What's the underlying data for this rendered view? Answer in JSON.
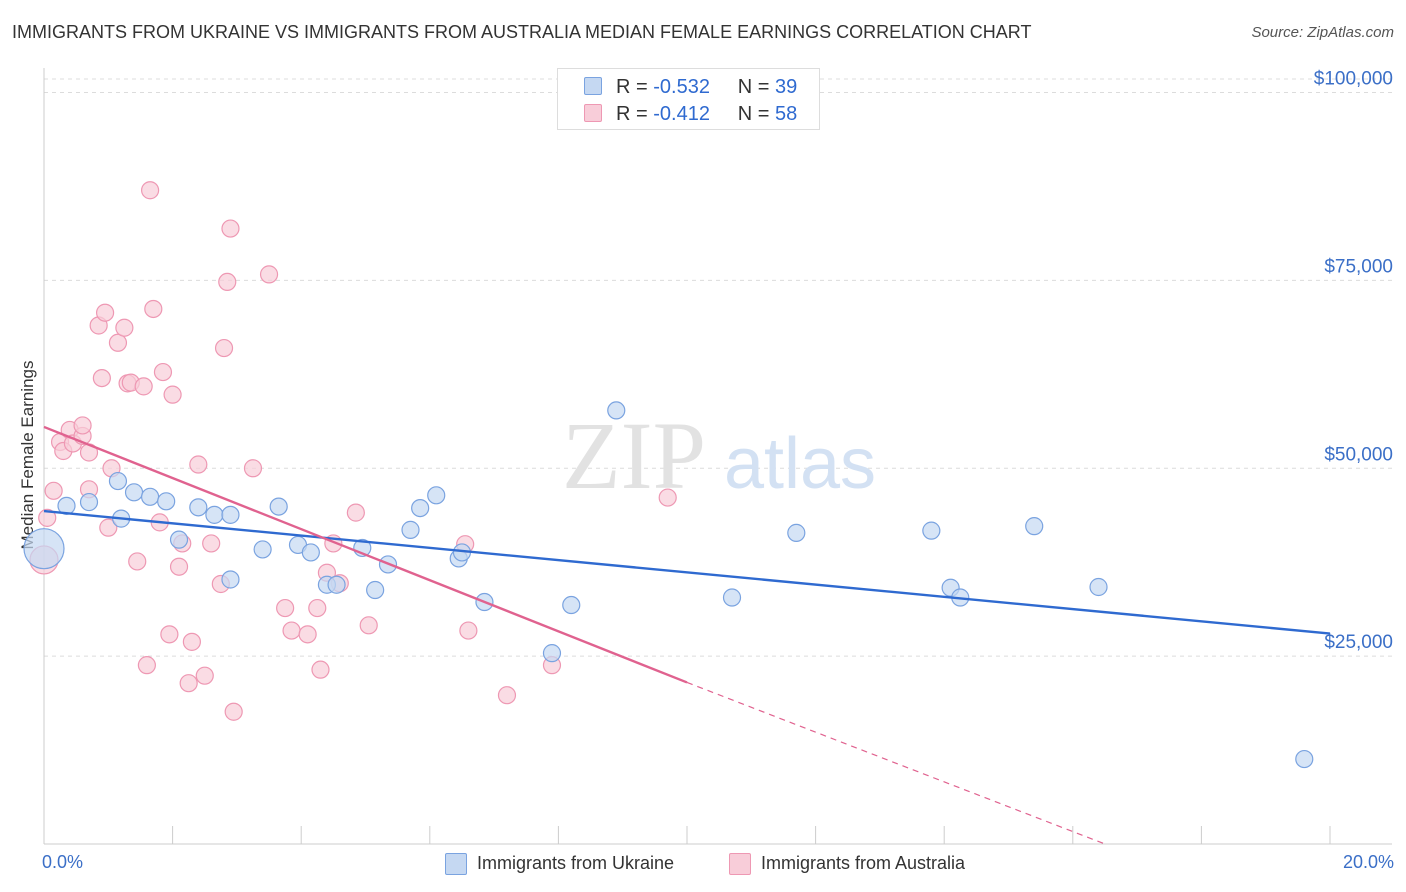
{
  "title": "IMMIGRANTS FROM UKRAINE VS IMMIGRANTS FROM AUSTRALIA MEDIAN FEMALE EARNINGS CORRELATION CHART",
  "source": "Source: ZipAtlas.com",
  "watermark": {
    "zip": "ZIP",
    "atlas": "atlas"
  },
  "stats": [
    {
      "r_label": "R =",
      "r_value": "-0.532",
      "n_label": "N =",
      "n_value": "39"
    },
    {
      "r_label": "R =",
      "r_value": "-0.412",
      "n_label": "N =",
      "n_value": "58"
    }
  ],
  "legend": [
    {
      "label": "Immigrants from Ukraine"
    },
    {
      "label": "Immigrants from Australia"
    }
  ],
  "colors": {
    "ukraine_fill": "#c5d8f2",
    "ukraine_stroke": "#7aa3e0",
    "ukraine_line": "#2f6ad0",
    "australia_fill": "#f8cdd9",
    "australia_stroke": "#ee98b3",
    "australia_line": "#e0628f",
    "tick_label": "#3b6fc7",
    "grid": "#dcdcdc"
  },
  "chart_data": {
    "type": "scatter",
    "xlabel": "",
    "ylabel": "Median Female Earnings",
    "xlim": [
      0,
      20
    ],
    "ylim": [
      0,
      103000
    ],
    "x_tick_labels": [
      {
        "value": 0,
        "label": "0.0%"
      },
      {
        "value": 20,
        "label": "20.0%"
      }
    ],
    "y_ticks": [
      {
        "value": 25000,
        "label": "$25,000"
      },
      {
        "value": 50000,
        "label": "$50,000"
      },
      {
        "value": 75000,
        "label": "$75,000"
      },
      {
        "value": 100000,
        "label": "$100,000"
      }
    ],
    "grid": true,
    "legend_position": "bottom",
    "series": [
      {
        "name": "Immigrants from Ukraine",
        "trend": {
          "x1": 0,
          "y1": 44300,
          "x2": 20,
          "y2": 28000,
          "dashed_to": null
        },
        "points": [
          [
            0.0,
            39300
          ],
          [
            0.35,
            45000
          ],
          [
            0.7,
            45500
          ],
          [
            1.15,
            48300
          ],
          [
            1.2,
            43300
          ],
          [
            1.4,
            46800
          ],
          [
            1.65,
            46200
          ],
          [
            1.9,
            45600
          ],
          [
            2.1,
            40500
          ],
          [
            2.4,
            44800
          ],
          [
            2.65,
            43800
          ],
          [
            2.9,
            43800
          ],
          [
            2.9,
            35200
          ],
          [
            3.4,
            39200
          ],
          [
            3.65,
            44900
          ],
          [
            3.95,
            39800
          ],
          [
            4.15,
            38800
          ],
          [
            4.4,
            34500
          ],
          [
            4.55,
            34500
          ],
          [
            4.95,
            39400
          ],
          [
            5.15,
            33800
          ],
          [
            5.35,
            37200
          ],
          [
            5.7,
            41800
          ],
          [
            5.85,
            44700
          ],
          [
            6.1,
            46400
          ],
          [
            6.45,
            38000
          ],
          [
            6.5,
            38800
          ],
          [
            6.85,
            32200
          ],
          [
            7.9,
            25400
          ],
          [
            8.2,
            31800
          ],
          [
            8.9,
            57700
          ],
          [
            10.7,
            32800
          ],
          [
            11.7,
            41400
          ],
          [
            13.8,
            41700
          ],
          [
            14.1,
            34100
          ],
          [
            14.25,
            32800
          ],
          [
            15.4,
            42300
          ],
          [
            16.4,
            34200
          ],
          [
            19.6,
            11300
          ]
        ]
      },
      {
        "name": "Immigrants from Australia",
        "trend": {
          "x1": 0,
          "y1": 55500,
          "x2": 10.0,
          "y2": 21500,
          "dashed_to": {
            "x": 16.5,
            "y": 0
          }
        },
        "points": [
          [
            0.0,
            37800
          ],
          [
            0.05,
            43400
          ],
          [
            0.15,
            47000
          ],
          [
            0.25,
            53500
          ],
          [
            0.3,
            52300
          ],
          [
            0.4,
            55100
          ],
          [
            0.45,
            53300
          ],
          [
            0.6,
            54300
          ],
          [
            0.6,
            55700
          ],
          [
            0.7,
            47200
          ],
          [
            0.7,
            52100
          ],
          [
            0.85,
            69000
          ],
          [
            0.9,
            62000
          ],
          [
            0.95,
            70700
          ],
          [
            1.0,
            42100
          ],
          [
            1.05,
            50000
          ],
          [
            1.15,
            66700
          ],
          [
            1.25,
            68700
          ],
          [
            1.3,
            61300
          ],
          [
            1.35,
            61400
          ],
          [
            1.45,
            37600
          ],
          [
            1.55,
            60900
          ],
          [
            1.6,
            23800
          ],
          [
            1.65,
            87000
          ],
          [
            1.7,
            71200
          ],
          [
            1.8,
            42800
          ],
          [
            1.85,
            62800
          ],
          [
            1.95,
            27900
          ],
          [
            2.0,
            59800
          ],
          [
            2.1,
            36900
          ],
          [
            2.15,
            40000
          ],
          [
            2.25,
            21400
          ],
          [
            2.3,
            26900
          ],
          [
            2.4,
            50500
          ],
          [
            2.5,
            22400
          ],
          [
            2.6,
            40000
          ],
          [
            2.75,
            34600
          ],
          [
            2.8,
            66000
          ],
          [
            2.85,
            74800
          ],
          [
            2.9,
            81900
          ],
          [
            2.95,
            17600
          ],
          [
            3.25,
            50000
          ],
          [
            3.5,
            75800
          ],
          [
            3.75,
            31400
          ],
          [
            3.85,
            28400
          ],
          [
            4.1,
            27900
          ],
          [
            4.25,
            31400
          ],
          [
            4.3,
            23200
          ],
          [
            4.4,
            36100
          ],
          [
            4.5,
            40000
          ],
          [
            4.6,
            34700
          ],
          [
            4.85,
            44100
          ],
          [
            5.05,
            29100
          ],
          [
            6.55,
            39900
          ],
          [
            6.6,
            28400
          ],
          [
            7.2,
            19800
          ],
          [
            7.9,
            23800
          ],
          [
            9.7,
            46100
          ]
        ]
      }
    ]
  }
}
